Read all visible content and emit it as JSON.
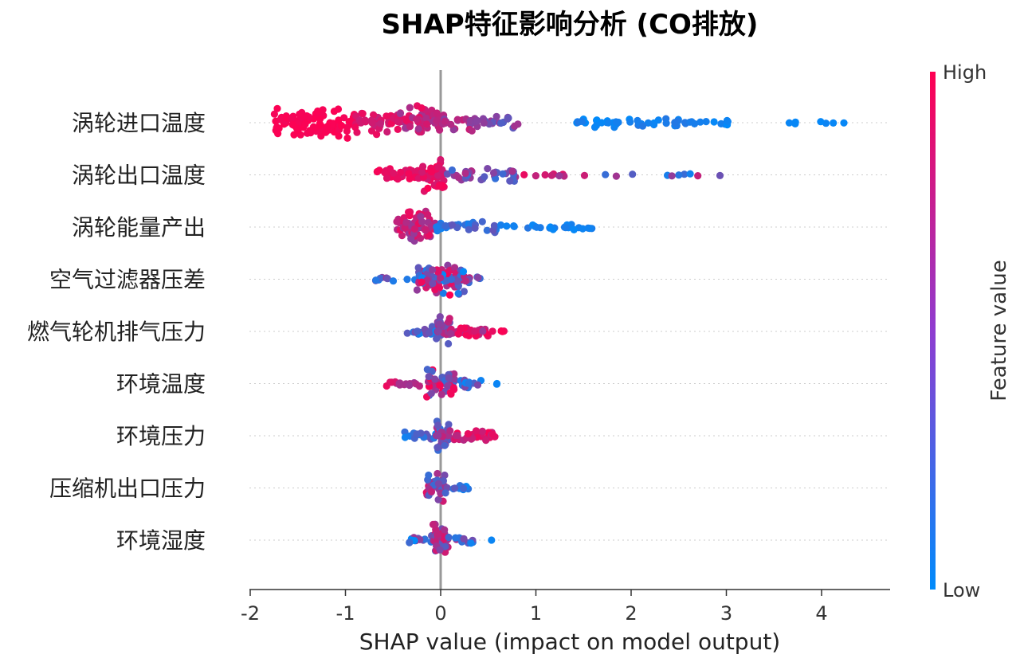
{
  "chart_data": {
    "type": "scatter",
    "subtype": "shap-beeswarm",
    "title": "SHAP特征影响分析 (CO排放)",
    "xlabel": "SHAP value (impact on model output)",
    "xlim": [
      -2,
      4.7
    ],
    "xticks": [
      -2,
      -1,
      0,
      1,
      2,
      3,
      4
    ],
    "xtick_labels": [
      "-2",
      "-1",
      "0",
      "1",
      "2",
      "3",
      "4"
    ],
    "colorbar": {
      "title": "Feature value",
      "high_label": "High",
      "low_label": "Low",
      "high_color": "#ff0052",
      "low_color": "#008bfb"
    },
    "features": [
      {
        "name": "涡轮进口温度",
        "clusters": [
          {
            "from": -1.75,
            "to": -0.9,
            "count": 90,
            "color": [
              0.95,
              1.0
            ],
            "spread": 1.0
          },
          {
            "from": -0.9,
            "to": -0.45,
            "count": 40,
            "color": [
              0.75,
              0.95
            ],
            "spread": 0.7
          },
          {
            "from": -0.45,
            "to": 0.0,
            "count": 55,
            "color": [
              0.6,
              0.95
            ],
            "spread": 1.0
          },
          {
            "from": 0.0,
            "to": 0.35,
            "count": 20,
            "color": [
              0.5,
              0.8
            ],
            "spread": 0.5
          },
          {
            "from": 0.35,
            "to": 0.85,
            "count": 22,
            "color": [
              0.3,
              0.65
            ],
            "spread": 0.4
          },
          {
            "from": 1.4,
            "to": 2.6,
            "count": 40,
            "color": [
              0.0,
              0.15
            ],
            "spread": 0.3
          },
          {
            "from": 2.6,
            "to": 3.1,
            "count": 12,
            "color": [
              0.0,
              0.1
            ],
            "spread": 0.15
          },
          {
            "from": 3.6,
            "to": 4.4,
            "count": 7,
            "color": [
              0.0,
              0.05
            ],
            "spread": 0.1
          }
        ]
      },
      {
        "name": "涡轮出口温度",
        "clusters": [
          {
            "from": -0.68,
            "to": -0.2,
            "count": 35,
            "color": [
              0.85,
              1.0
            ],
            "spread": 0.35
          },
          {
            "from": -0.2,
            "to": 0.05,
            "count": 40,
            "color": [
              0.8,
              1.0
            ],
            "spread": 1.0
          },
          {
            "from": 0.05,
            "to": 0.8,
            "count": 35,
            "color": [
              0.2,
              0.7
            ],
            "spread": 0.4
          },
          {
            "from": 0.8,
            "to": 1.3,
            "count": 8,
            "color": [
              0.6,
              0.95
            ],
            "spread": 0.1
          },
          {
            "from": 1.4,
            "to": 2.95,
            "count": 11,
            "color": [
              0.0,
              0.85
            ],
            "spread": 0.1
          }
        ]
      },
      {
        "name": "涡轮能量产出",
        "clusters": [
          {
            "from": -0.48,
            "to": -0.05,
            "count": 60,
            "color": [
              0.55,
              0.95
            ],
            "spread": 1.0
          },
          {
            "from": -0.05,
            "to": 0.6,
            "count": 30,
            "color": [
              0.0,
              0.4
            ],
            "spread": 0.35
          },
          {
            "from": 0.6,
            "to": 1.6,
            "count": 25,
            "color": [
              0.0,
              0.15
            ],
            "spread": 0.2
          }
        ]
      },
      {
        "name": "空气过滤器压差",
        "clusters": [
          {
            "from": -0.7,
            "to": -0.25,
            "count": 10,
            "color": [
              0.0,
              0.6
            ],
            "spread": 0.2
          },
          {
            "from": -0.25,
            "to": 0.25,
            "count": 90,
            "color": [
              0.0,
              1.0
            ],
            "spread": 1.0
          },
          {
            "from": 0.25,
            "to": 0.45,
            "count": 8,
            "color": [
              0.2,
              0.8
            ],
            "spread": 0.2
          }
        ]
      },
      {
        "name": "燃气轮机排气压力",
        "clusters": [
          {
            "from": -0.38,
            "to": -0.05,
            "count": 20,
            "color": [
              0.0,
              0.5
            ],
            "spread": 0.3
          },
          {
            "from": -0.05,
            "to": 0.1,
            "count": 25,
            "color": [
              0.3,
              0.8
            ],
            "spread": 0.9
          },
          {
            "from": 0.1,
            "to": 0.5,
            "count": 30,
            "color": [
              0.6,
              1.0
            ],
            "spread": 0.35
          },
          {
            "from": 0.5,
            "to": 0.72,
            "count": 4,
            "color": [
              0.9,
              1.0
            ],
            "spread": 0.1
          }
        ]
      },
      {
        "name": "环境温度",
        "clusters": [
          {
            "from": -0.58,
            "to": -0.15,
            "count": 15,
            "color": [
              0.6,
              1.0
            ],
            "spread": 0.2
          },
          {
            "from": -0.15,
            "to": 0.15,
            "count": 50,
            "color": [
              0.2,
              1.0
            ],
            "spread": 0.9
          },
          {
            "from": 0.15,
            "to": 0.45,
            "count": 12,
            "color": [
              0.0,
              0.5
            ],
            "spread": 0.3
          },
          {
            "from": 0.55,
            "to": 0.65,
            "count": 2,
            "color": [
              0.0,
              0.05
            ],
            "spread": 0.05
          }
        ]
      },
      {
        "name": "环境压力",
        "clusters": [
          {
            "from": -0.38,
            "to": -0.05,
            "count": 15,
            "color": [
              0.0,
              0.5
            ],
            "spread": 0.25
          },
          {
            "from": -0.05,
            "to": 0.1,
            "count": 35,
            "color": [
              0.2,
              0.9
            ],
            "spread": 1.0
          },
          {
            "from": 0.1,
            "to": 0.6,
            "count": 30,
            "color": [
              0.7,
              1.0
            ],
            "spread": 0.3
          }
        ]
      },
      {
        "name": "压缩机出口压力",
        "clusters": [
          {
            "from": -0.15,
            "to": 0.05,
            "count": 35,
            "color": [
              0.2,
              0.9
            ],
            "spread": 1.0
          },
          {
            "from": 0.05,
            "to": 0.3,
            "count": 12,
            "color": [
              0.0,
              0.6
            ],
            "spread": 0.3
          }
        ]
      },
      {
        "name": "环境湿度",
        "clusters": [
          {
            "from": -0.35,
            "to": -0.08,
            "count": 15,
            "color": [
              0.0,
              0.7
            ],
            "spread": 0.3
          },
          {
            "from": -0.08,
            "to": 0.08,
            "count": 40,
            "color": [
              0.3,
              1.0
            ],
            "spread": 1.0
          },
          {
            "from": 0.08,
            "to": 0.35,
            "count": 12,
            "color": [
              0.0,
              0.7
            ],
            "spread": 0.3
          },
          {
            "from": 0.5,
            "to": 0.55,
            "count": 1,
            "color": [
              0.0,
              0.05
            ],
            "spread": 0.0
          }
        ]
      }
    ]
  }
}
